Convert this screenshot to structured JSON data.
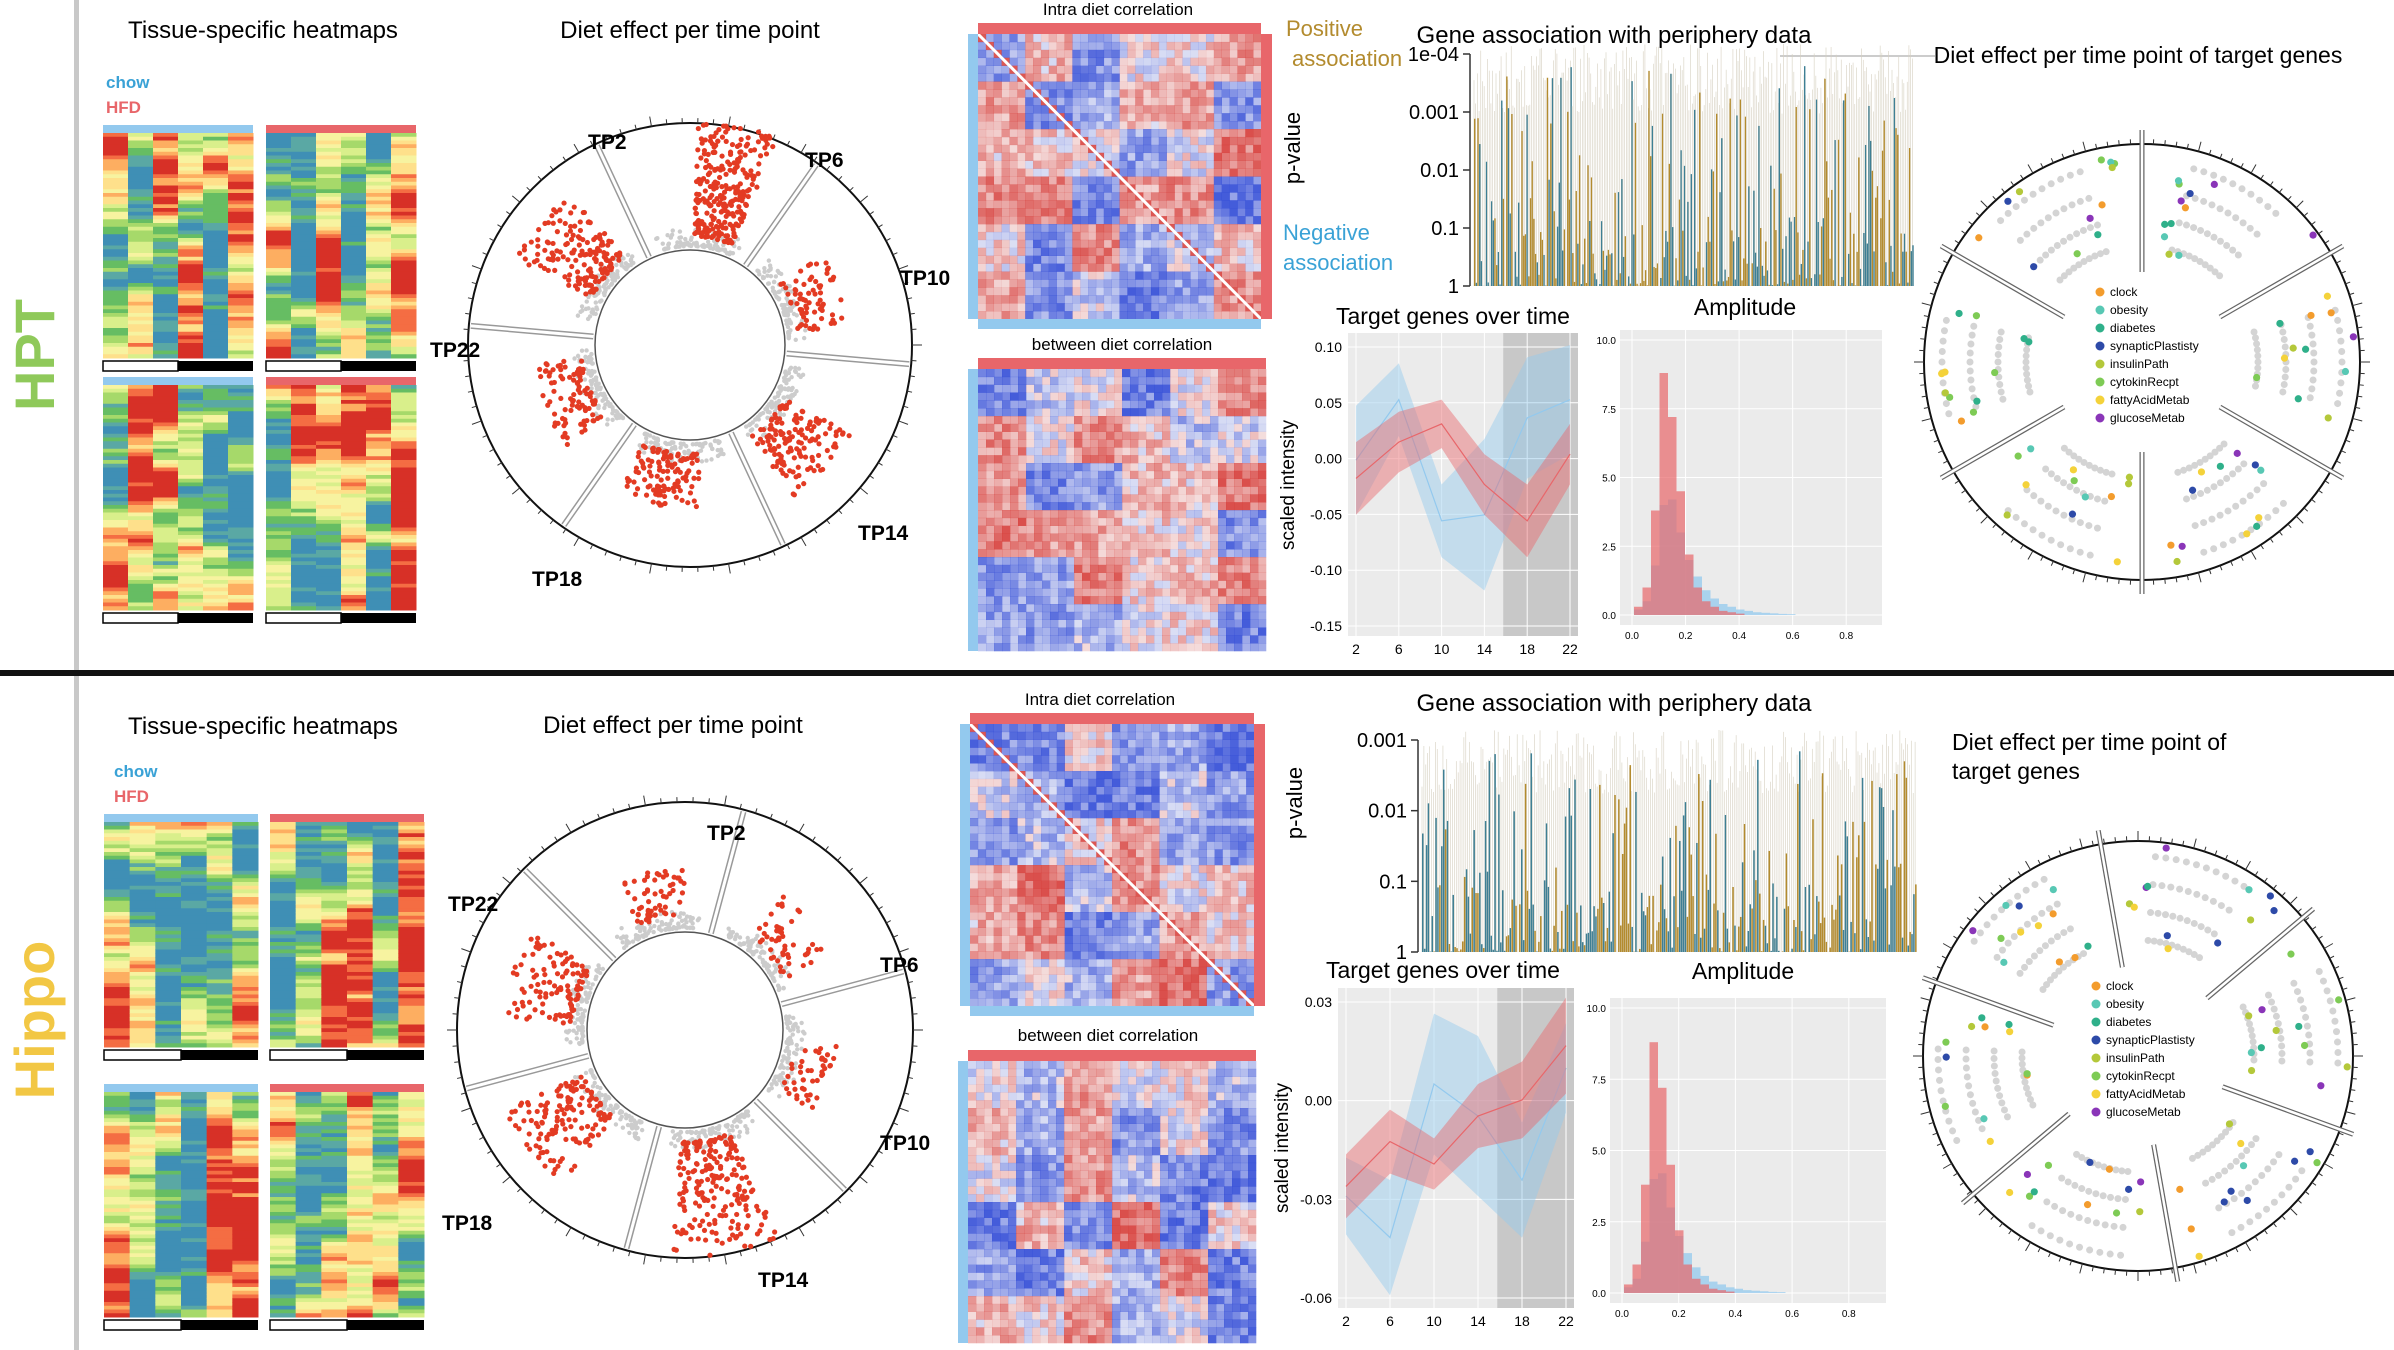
{
  "rows": [
    {
      "tissue": "HPT",
      "tissue_color": "#8fc95a",
      "heatmaps": {
        "title": "Tissue-specific heatmaps",
        "legend": [
          "chow",
          "HFD"
        ]
      },
      "diet_effect": {
        "title": "Diet effect per time point",
        "tp_labels": [
          "TP2",
          "TP6",
          "TP10",
          "TP14",
          "TP18",
          "TP22"
        ]
      },
      "correlation": {
        "intra_title": "Intra diet correlation",
        "between_title": "between diet correlation"
      },
      "association": {
        "title": "Gene association with periphery data",
        "positive_label": "Positive association",
        "negative_label": "Negative association",
        "ylabel": "p-value",
        "yticks": [
          "1e-04",
          "0.001",
          "0.01",
          "0.1",
          "1"
        ]
      },
      "target_genes": {
        "title": "Target genes over time",
        "ylabel": "scaled intensity",
        "yticks": [
          "0.10",
          "0.05",
          "0.00",
          "-0.05",
          "-0.10",
          "-0.15"
        ],
        "xticks": [
          "2",
          "6",
          "10",
          "14",
          "18",
          "22"
        ]
      },
      "amplitude": {
        "title": "Amplitude",
        "yticks": [
          "10.0",
          "7.5",
          "5.0",
          "2.5",
          "0.0"
        ],
        "xticks": [
          "0.0",
          "0.2",
          "0.4",
          "0.6",
          "0.8"
        ]
      },
      "target_circle": {
        "title": "Diet effect per time  point of target genes",
        "legend": [
          "clock",
          "obesity",
          "diabetes",
          "synapticPlastisty",
          "insulinPath",
          "cytokinRecpt",
          "fattyAcidMetab",
          "glucoseMetab"
        ]
      }
    },
    {
      "tissue": "Hippo",
      "tissue_color": "#f2c744",
      "heatmaps": {
        "title": "Tissue-specific heatmaps",
        "legend": [
          "chow",
          "HFD"
        ]
      },
      "diet_effect": {
        "title": "Diet effect per time point",
        "tp_labels": [
          "TP2",
          "TP6",
          "TP10",
          "TP14",
          "TP18",
          "TP22"
        ]
      },
      "correlation": {
        "intra_title": "Intra diet correlation",
        "between_title": "between diet correlation"
      },
      "association": {
        "title": "Gene association with periphery data",
        "ylabel": "p-value",
        "yticks": [
          "0.001",
          "0.01",
          "0.1",
          "1"
        ]
      },
      "target_genes": {
        "title": "Target genes over time",
        "ylabel": "scaled intensity",
        "yticks": [
          "0.03",
          "0.00",
          "-0.03",
          "-0.06"
        ],
        "xticks": [
          "2",
          "6",
          "10",
          "14",
          "18",
          "22"
        ]
      },
      "amplitude": {
        "title": "Amplitude",
        "yticks": [
          "10.0",
          "7.5",
          "5.0",
          "2.5",
          "0.0"
        ],
        "xticks": [
          "0.0",
          "0.2",
          "0.4",
          "0.6",
          "0.8"
        ]
      },
      "target_circle": {
        "title": "Diet effect per time  point of target genes",
        "legend": [
          "clock",
          "obesity",
          "diabetes",
          "synapticPlastisty",
          "insulinPath",
          "cytokinRecpt",
          "fattyAcidMetab",
          "glucoseMetab"
        ]
      }
    }
  ],
  "colors": {
    "chow": "#93c9ee",
    "hfd": "#e8666a",
    "positive": "#b38b2e",
    "negative": "#3aa2d6",
    "scatter_red": "#e33b23",
    "category": [
      "#f39c2d",
      "#58c8b4",
      "#2fb08a",
      "#2d4aa8",
      "#b4c83a",
      "#7ecb55",
      "#f4d23a",
      "#8a35b8"
    ]
  }
}
